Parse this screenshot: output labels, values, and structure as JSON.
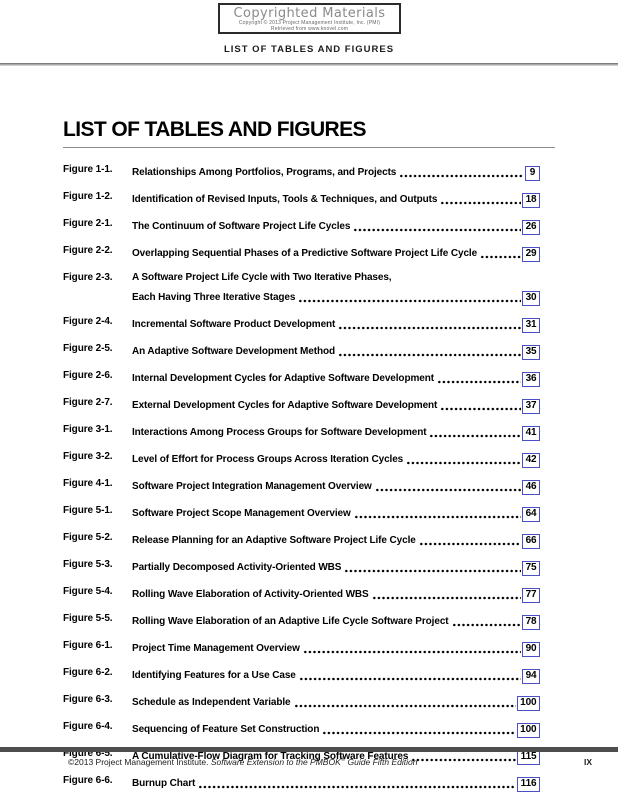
{
  "watermark": {
    "title": "Copyrighted Materials",
    "line1": "Copyright © 2013 Project Management Institute, Inc. (PMI)",
    "line2": "Retrieved from www.knovel.com"
  },
  "running_header": "LIST OF TABLES AND FIGURES",
  "page_title": "LIST OF TABLES AND FIGURES",
  "entries": [
    {
      "label": "Figure 1-1.",
      "title": "Relationships Among Portfolios, Programs, and Projects",
      "page": "9"
    },
    {
      "label": "Figure 1-2.",
      "title": "Identification of Revised Inputs, Tools & Techniques, and Outputs",
      "page": "18"
    },
    {
      "label": "Figure 2-1.",
      "title": "The Continuum of Software Project Life Cycles",
      "page": "26"
    },
    {
      "label": "Figure 2-2.",
      "title": "Overlapping Sequential Phases of a Predictive Software Project Life Cycle",
      "page": "29"
    },
    {
      "label": "Figure 2-3.",
      "title": "A Software Project Life Cycle with Two Iterative Phases,",
      "title_line2": "Each Having Three Iterative Stages",
      "page": "30"
    },
    {
      "label": "Figure 2-4.",
      "title": "Incremental Software Product Development",
      "page": "31"
    },
    {
      "label": "Figure 2-5.",
      "title": "An Adaptive Software Development Method",
      "page": "35"
    },
    {
      "label": "Figure 2-6.",
      "title": "Internal Development Cycles for Adaptive Software Development",
      "page": "36"
    },
    {
      "label": "Figure 2-7.",
      "title": "External Development Cycles for Adaptive Software Development",
      "page": "37"
    },
    {
      "label": "Figure 3-1.",
      "title": "Interactions Among Process Groups for Software Development",
      "page": "41"
    },
    {
      "label": "Figure 3-2.",
      "title": "Level of Effort for Process Groups Across Iteration Cycles",
      "page": "42"
    },
    {
      "label": "Figure 4-1.",
      "title": "Software Project Integration Management Overview",
      "page": "46"
    },
    {
      "label": "Figure 5-1.",
      "title": "Software Project Scope Management Overview",
      "page": "64"
    },
    {
      "label": "Figure 5-2.",
      "title": "Release Planning for an Adaptive Software Project Life Cycle",
      "page": "66"
    },
    {
      "label": "Figure 5-3.",
      "title": "Partially Decomposed Activity-Oriented WBS",
      "page": "75"
    },
    {
      "label": "Figure 5-4.",
      "title": "Rolling Wave Elaboration of Activity-Oriented WBS",
      "page": "77"
    },
    {
      "label": "Figure 5-5.",
      "title": "Rolling Wave Elaboration of an Adaptive Life Cycle Software Project",
      "page": "78"
    },
    {
      "label": "Figure 6-1.",
      "title": "Project Time Management Overview",
      "page": "90"
    },
    {
      "label": "Figure 6-2.",
      "title": "Identifying Features for a Use Case",
      "page": "94"
    },
    {
      "label": "Figure 6-3.",
      "title": "Schedule as Independent Variable",
      "page": "100"
    },
    {
      "label": "Figure 6-4.",
      "title": "Sequencing of Feature Set Construction",
      "page": "100"
    },
    {
      "label": "Figure 6-5.",
      "title": "A Cumulative-Flow Diagram for Tracking Software Features",
      "page": "115"
    },
    {
      "label": "Figure 6-6.",
      "title": "Burnup Chart",
      "page": "116"
    }
  ],
  "footer": {
    "copyright_regular": "©2013 Project Management Institute. ",
    "copyright_italic_1": "Software Extension to the PMBOK",
    "registered_mark": "®",
    "copyright_italic_2": " Guide Fifth Edition",
    "page_number": "IX"
  },
  "colors": {
    "link_box_border": "#4b4fc5",
    "footer_bar": "#4e4e4e",
    "rule_gray": "#8d8d8d"
  }
}
